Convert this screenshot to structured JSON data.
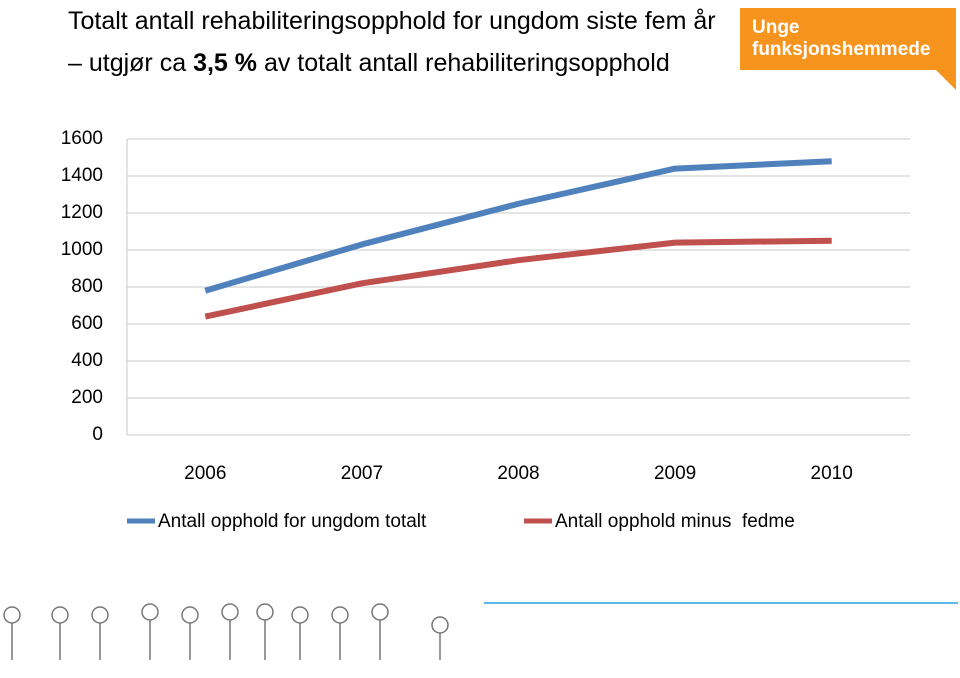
{
  "logo": [
    "Unge",
    "funksjonshemmede"
  ],
  "chart_data": {
    "type": "line",
    "title": [
      "Totalt antall rehabiliteringsopphold for ungdom siste fem år – utgjør ca ",
      "3,5 %",
      " av totalt antall rehabiliteringsopphold"
    ],
    "categories": [
      "2006",
      "2007",
      "2008",
      "2009",
      "2010"
    ],
    "series": [
      {
        "name": "Antall opphold for ungdom totalt",
        "color": "#4f81bd",
        "values": [
          780,
          1030,
          1250,
          1440,
          1480
        ]
      },
      {
        "name": "Antall opphold minus  fedme",
        "color": "#c0504d",
        "values": [
          640,
          820,
          945,
          1040,
          1050
        ]
      }
    ],
    "ylim": [
      0,
      1600
    ],
    "yticks": [
      0,
      200,
      400,
      600,
      800,
      1000,
      1200,
      1400,
      1600
    ],
    "grid": true,
    "legend": "bottom"
  }
}
